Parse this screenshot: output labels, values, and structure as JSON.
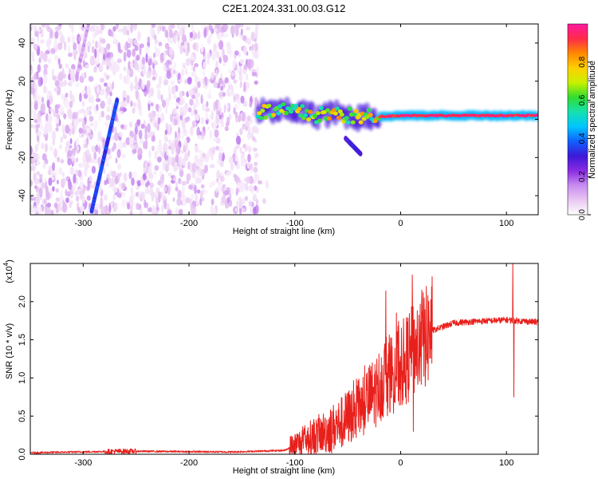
{
  "title": "C2E1.2024.331.00.03.G12",
  "chart_data": [
    {
      "type": "heatmap",
      "name": "spectrogram",
      "xlabel": "Height of straight line (km)",
      "ylabel": "Frequency (Hz)",
      "xlim": [
        -350,
        130
      ],
      "ylim": [
        -50,
        50
      ],
      "xticks": [
        -300,
        -200,
        -100,
        0,
        100
      ],
      "xtick_labels": [
        "-300",
        "-200",
        "-100",
        "0",
        "100"
      ],
      "yticks": [
        -40,
        -20,
        0,
        20,
        40
      ],
      "ytick_labels": [
        "-40",
        "-20",
        "0",
        "20",
        "40"
      ],
      "colorbar": {
        "label": "Normalized spectral amplitude",
        "range": [
          0,
          1
        ],
        "ticks": [
          0.0,
          0.2,
          0.4,
          0.6,
          0.8
        ],
        "tick_labels": [
          "0.0",
          "0.2",
          "0.4",
          "0.6",
          "0.8"
        ],
        "stops": [
          "#ffffff",
          "#e9c8f2",
          "#c88cf0",
          "#8a2be2",
          "#3d18d8",
          "#1060ff",
          "#00c6ff",
          "#16e0b0",
          "#30dd30",
          "#c9f000",
          "#ffd000",
          "#ff8800",
          "#ff2a4a",
          "#ff1aa0"
        ]
      },
      "features": [
        {
          "name": "scattered noise region",
          "x_range": [
            -350,
            -135
          ],
          "y_range": [
            -50,
            50
          ],
          "amplitude": 0.12
        },
        {
          "name": "steep streak",
          "points": [
            [
              -292,
              -48
            ],
            [
              -268,
              10
            ]
          ],
          "amplitude": 0.35
        },
        {
          "name": "faint streaks",
          "points": [
            [
              -305,
              25
            ],
            [
              -295,
              50
            ]
          ],
          "amplitude": 0.12
        },
        {
          "name": "carrier band",
          "points": [
            [
              -135,
              4
            ],
            [
              -100,
              4
            ],
            [
              -80,
              2
            ],
            [
              -60,
              3
            ],
            [
              -40,
              1
            ],
            [
              0,
              2
            ],
            [
              40,
              2
            ],
            [
              90,
              2
            ],
            [
              130,
              2
            ]
          ],
          "amplitude": 0.95
        },
        {
          "name": "descending branch",
          "points": [
            [
              -52,
              -10
            ],
            [
              -38,
              -18
            ]
          ],
          "amplitude": 0.3
        }
      ]
    },
    {
      "type": "line",
      "name": "snr",
      "xlabel": "Height of straight line (km)",
      "ylabel": "SNR (10 * v/v)",
      "scale_note": "(x10",
      "scale_exp": "4",
      "color": "#e8201c",
      "xlim": [
        -350,
        130
      ],
      "ylim": [
        0,
        2.5
      ],
      "xticks": [
        -300,
        -200,
        -100,
        0,
        100
      ],
      "xtick_labels": [
        "-300",
        "-200",
        "-100",
        "0",
        "100"
      ],
      "yticks": [
        0.0,
        0.5,
        1.0,
        1.5,
        2.0
      ],
      "ytick_labels": [
        "0.0",
        "0.5",
        "1.0",
        "1.5",
        "2.0"
      ],
      "envelope": [
        [
          -350,
          0.02
        ],
        [
          -260,
          0.04
        ],
        [
          -160,
          0.03
        ],
        [
          -110,
          0.05
        ],
        [
          -100,
          0.12
        ],
        [
          -85,
          0.22
        ],
        [
          -70,
          0.3
        ],
        [
          -55,
          0.42
        ],
        [
          -40,
          0.6
        ],
        [
          -25,
          0.8
        ],
        [
          -15,
          1.0
        ],
        [
          0,
          1.15
        ],
        [
          15,
          1.4
        ],
        [
          30,
          1.62
        ],
        [
          50,
          1.72
        ],
        [
          70,
          1.74
        ],
        [
          100,
          1.76
        ],
        [
          130,
          1.73
        ]
      ],
      "spikes": [
        [
          -14,
          2.14
        ],
        [
          -10,
          0.55
        ],
        [
          -4,
          1.85
        ],
        [
          0,
          0.9
        ],
        [
          11,
          2.35
        ],
        [
          12,
          0.3
        ],
        [
          20,
          2.15
        ],
        [
          106,
          2.5
        ],
        [
          107,
          0.75
        ]
      ]
    }
  ]
}
